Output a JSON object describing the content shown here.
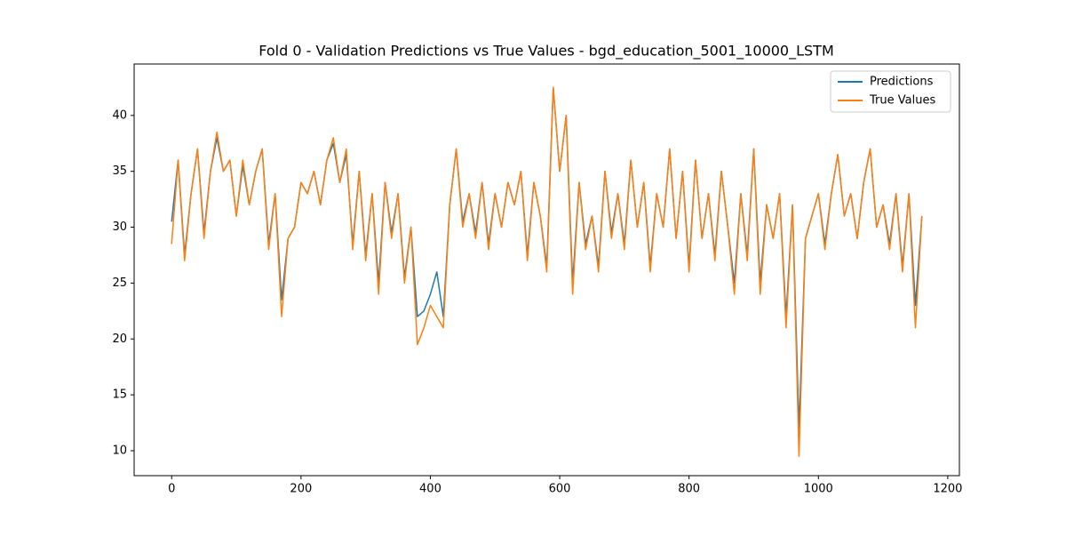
{
  "chart_data": {
    "type": "line",
    "title": "Fold 0 - Validation Predictions vs True Values - bgd_education_5001_10000_LSTM",
    "x": [
      0,
      10,
      20,
      30,
      40,
      50,
      60,
      70,
      80,
      90,
      100,
      110,
      120,
      130,
      140,
      150,
      160,
      170,
      180,
      190,
      200,
      210,
      220,
      230,
      240,
      250,
      260,
      270,
      280,
      290,
      300,
      310,
      320,
      330,
      340,
      350,
      360,
      370,
      380,
      390,
      400,
      410,
      420,
      430,
      440,
      450,
      460,
      470,
      480,
      490,
      500,
      510,
      520,
      530,
      540,
      550,
      560,
      570,
      580,
      590,
      600,
      610,
      620,
      630,
      640,
      650,
      660,
      670,
      680,
      690,
      700,
      710,
      720,
      730,
      740,
      750,
      760,
      770,
      780,
      790,
      800,
      810,
      820,
      830,
      840,
      850,
      860,
      870,
      880,
      890,
      900,
      910,
      920,
      930,
      940,
      950,
      960,
      970,
      980,
      990,
      1000,
      1010,
      1020,
      1030,
      1040,
      1050,
      1060,
      1070,
      1080,
      1090,
      1100,
      1110,
      1120,
      1130,
      1140,
      1150,
      1160
    ],
    "series": [
      {
        "name": "Predictions",
        "color": "#1f77b4",
        "values": [
          30.5,
          36,
          27.5,
          33,
          37,
          29.5,
          35,
          38,
          35,
          36,
          31,
          35.5,
          32,
          35,
          37,
          28.5,
          33,
          23.5,
          29,
          30,
          34,
          33,
          35,
          32,
          36,
          37.5,
          34,
          36.5,
          28.5,
          35,
          27.5,
          33,
          25,
          34,
          29.5,
          33,
          25.5,
          30,
          22,
          22.5,
          24,
          26,
          22,
          32,
          37,
          30.5,
          33,
          29.5,
          34,
          28.5,
          33,
          30,
          34,
          32,
          35,
          27.5,
          34,
          31,
          26.5,
          42.5,
          35,
          40,
          25,
          34,
          28.5,
          31,
          26.5,
          35,
          29.5,
          33,
          28.5,
          36,
          30,
          34,
          26.5,
          33,
          30,
          37,
          29,
          35,
          26.5,
          36,
          29,
          33,
          27.5,
          35,
          30,
          25,
          33,
          27.5,
          37,
          25,
          32,
          29,
          33,
          22,
          32,
          12,
          29,
          31,
          33,
          28.5,
          33,
          36.5,
          31,
          33,
          29,
          34,
          37,
          30,
          32,
          28.5,
          33,
          26.5,
          33,
          23,
          31
        ]
      },
      {
        "name": "True Values",
        "color": "#ff7f0e",
        "values": [
          28.5,
          36,
          27,
          33,
          37,
          29,
          35,
          38.5,
          35,
          36,
          31,
          36,
          32,
          35,
          37,
          28,
          33,
          22,
          29,
          30,
          34,
          33,
          35,
          32,
          36,
          38,
          34,
          37,
          28,
          35,
          27,
          33,
          24,
          34,
          29,
          33,
          25,
          30,
          19.5,
          21,
          23,
          22,
          21,
          32,
          37,
          30,
          33,
          29,
          34,
          28,
          33,
          30,
          34,
          32,
          35,
          27,
          34,
          31,
          26,
          42.5,
          35,
          40,
          24,
          34,
          28,
          31,
          26,
          35,
          29,
          33,
          28,
          36,
          30,
          34,
          26,
          33,
          30,
          37,
          29,
          35,
          26,
          36,
          29,
          33,
          27,
          35,
          30,
          24,
          33,
          27,
          37,
          24,
          32,
          29,
          33,
          21,
          32,
          9.5,
          29,
          31,
          33,
          28,
          33,
          36.5,
          31,
          33,
          29,
          34,
          37,
          30,
          32,
          28,
          33,
          26,
          33,
          21,
          31
        ]
      }
    ],
    "xlim": [
      -58,
      1218
    ],
    "ylim": [
      7.77,
      44.6
    ],
    "xticks": [
      0,
      200,
      400,
      600,
      800,
      1000,
      1200
    ],
    "yticks": [
      10,
      15,
      20,
      25,
      30,
      35,
      40
    ],
    "legend": "upper right"
  }
}
